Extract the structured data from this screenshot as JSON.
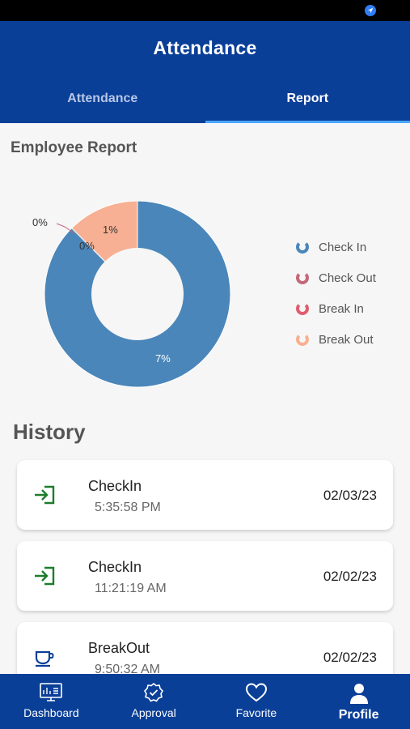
{
  "app": {
    "title": "Attendance",
    "tabs": [
      {
        "label": "Attendance",
        "active": false
      },
      {
        "label": "Report",
        "active": true
      }
    ]
  },
  "report": {
    "title": "Employee Report",
    "chart_data": {
      "type": "pie",
      "variant": "donut",
      "slices": [
        {
          "label": "Check In",
          "value_label": "7%",
          "value": 7,
          "color": "#4a86b9"
        },
        {
          "label": "Check Out",
          "value_label": "0%",
          "value": 0,
          "color": "#c4687a"
        },
        {
          "label": "Break In",
          "value_label": "0%",
          "value": 0,
          "color": "#e05d6f"
        },
        {
          "label": "Break Out",
          "value_label": "1%",
          "value": 1,
          "color": "#f7b093"
        }
      ],
      "legend_position": "right"
    }
  },
  "history": {
    "title": "History",
    "items": [
      {
        "type": "CheckIn",
        "time": "5:35:58 PM",
        "date": "02/03/23",
        "icon": "login-icon"
      },
      {
        "type": "CheckIn",
        "time": "11:21:19 AM",
        "date": "02/02/23",
        "icon": "login-icon"
      },
      {
        "type": "BreakOut",
        "time": "9:50:32 AM",
        "date": "02/02/23",
        "icon": "coffee-cup-icon"
      }
    ]
  },
  "nav": [
    {
      "label": "Dashboard",
      "icon": "dashboard-icon",
      "active": false
    },
    {
      "label": "Approval",
      "icon": "approval-icon",
      "active": false
    },
    {
      "label": "Favorite",
      "icon": "heart-icon",
      "active": false
    },
    {
      "label": "Profile",
      "icon": "profile-icon",
      "active": true
    }
  ],
  "colors": {
    "primary": "#0a3f98",
    "tab_indicator": "#49a7ff",
    "checkin_icon": "#1e7d2b",
    "breakout_icon": "#0a3f98"
  }
}
